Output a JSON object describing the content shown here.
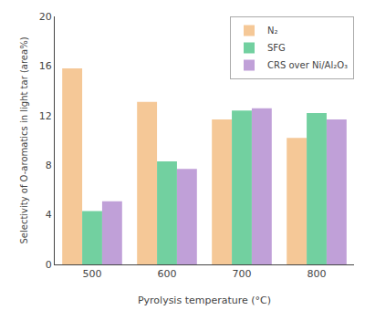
{
  "chart_data": {
    "type": "bar",
    "xlabel": "Pyrolysis temperature (°C)",
    "ylabel": "Selectivity of O-aromatics in light tar (area%)",
    "categories": [
      "500",
      "600",
      "700",
      "800"
    ],
    "series": [
      {
        "name": "N₂",
        "color": "#F5C897",
        "values": [
          15.8,
          13.1,
          11.7,
          10.2
        ]
      },
      {
        "name": "SFG",
        "color": "#72D0A0",
        "values": [
          4.3,
          8.3,
          12.4,
          12.2
        ]
      },
      {
        "name": "CRS over Ni/Al₂O₃",
        "color": "#C0A0D8",
        "values": [
          5.1,
          7.7,
          12.6,
          11.7
        ]
      }
    ],
    "ylim": [
      0,
      20
    ],
    "yticks": [
      0,
      4,
      8,
      12,
      16,
      20
    ],
    "grid": false,
    "legend": "upper right"
  }
}
